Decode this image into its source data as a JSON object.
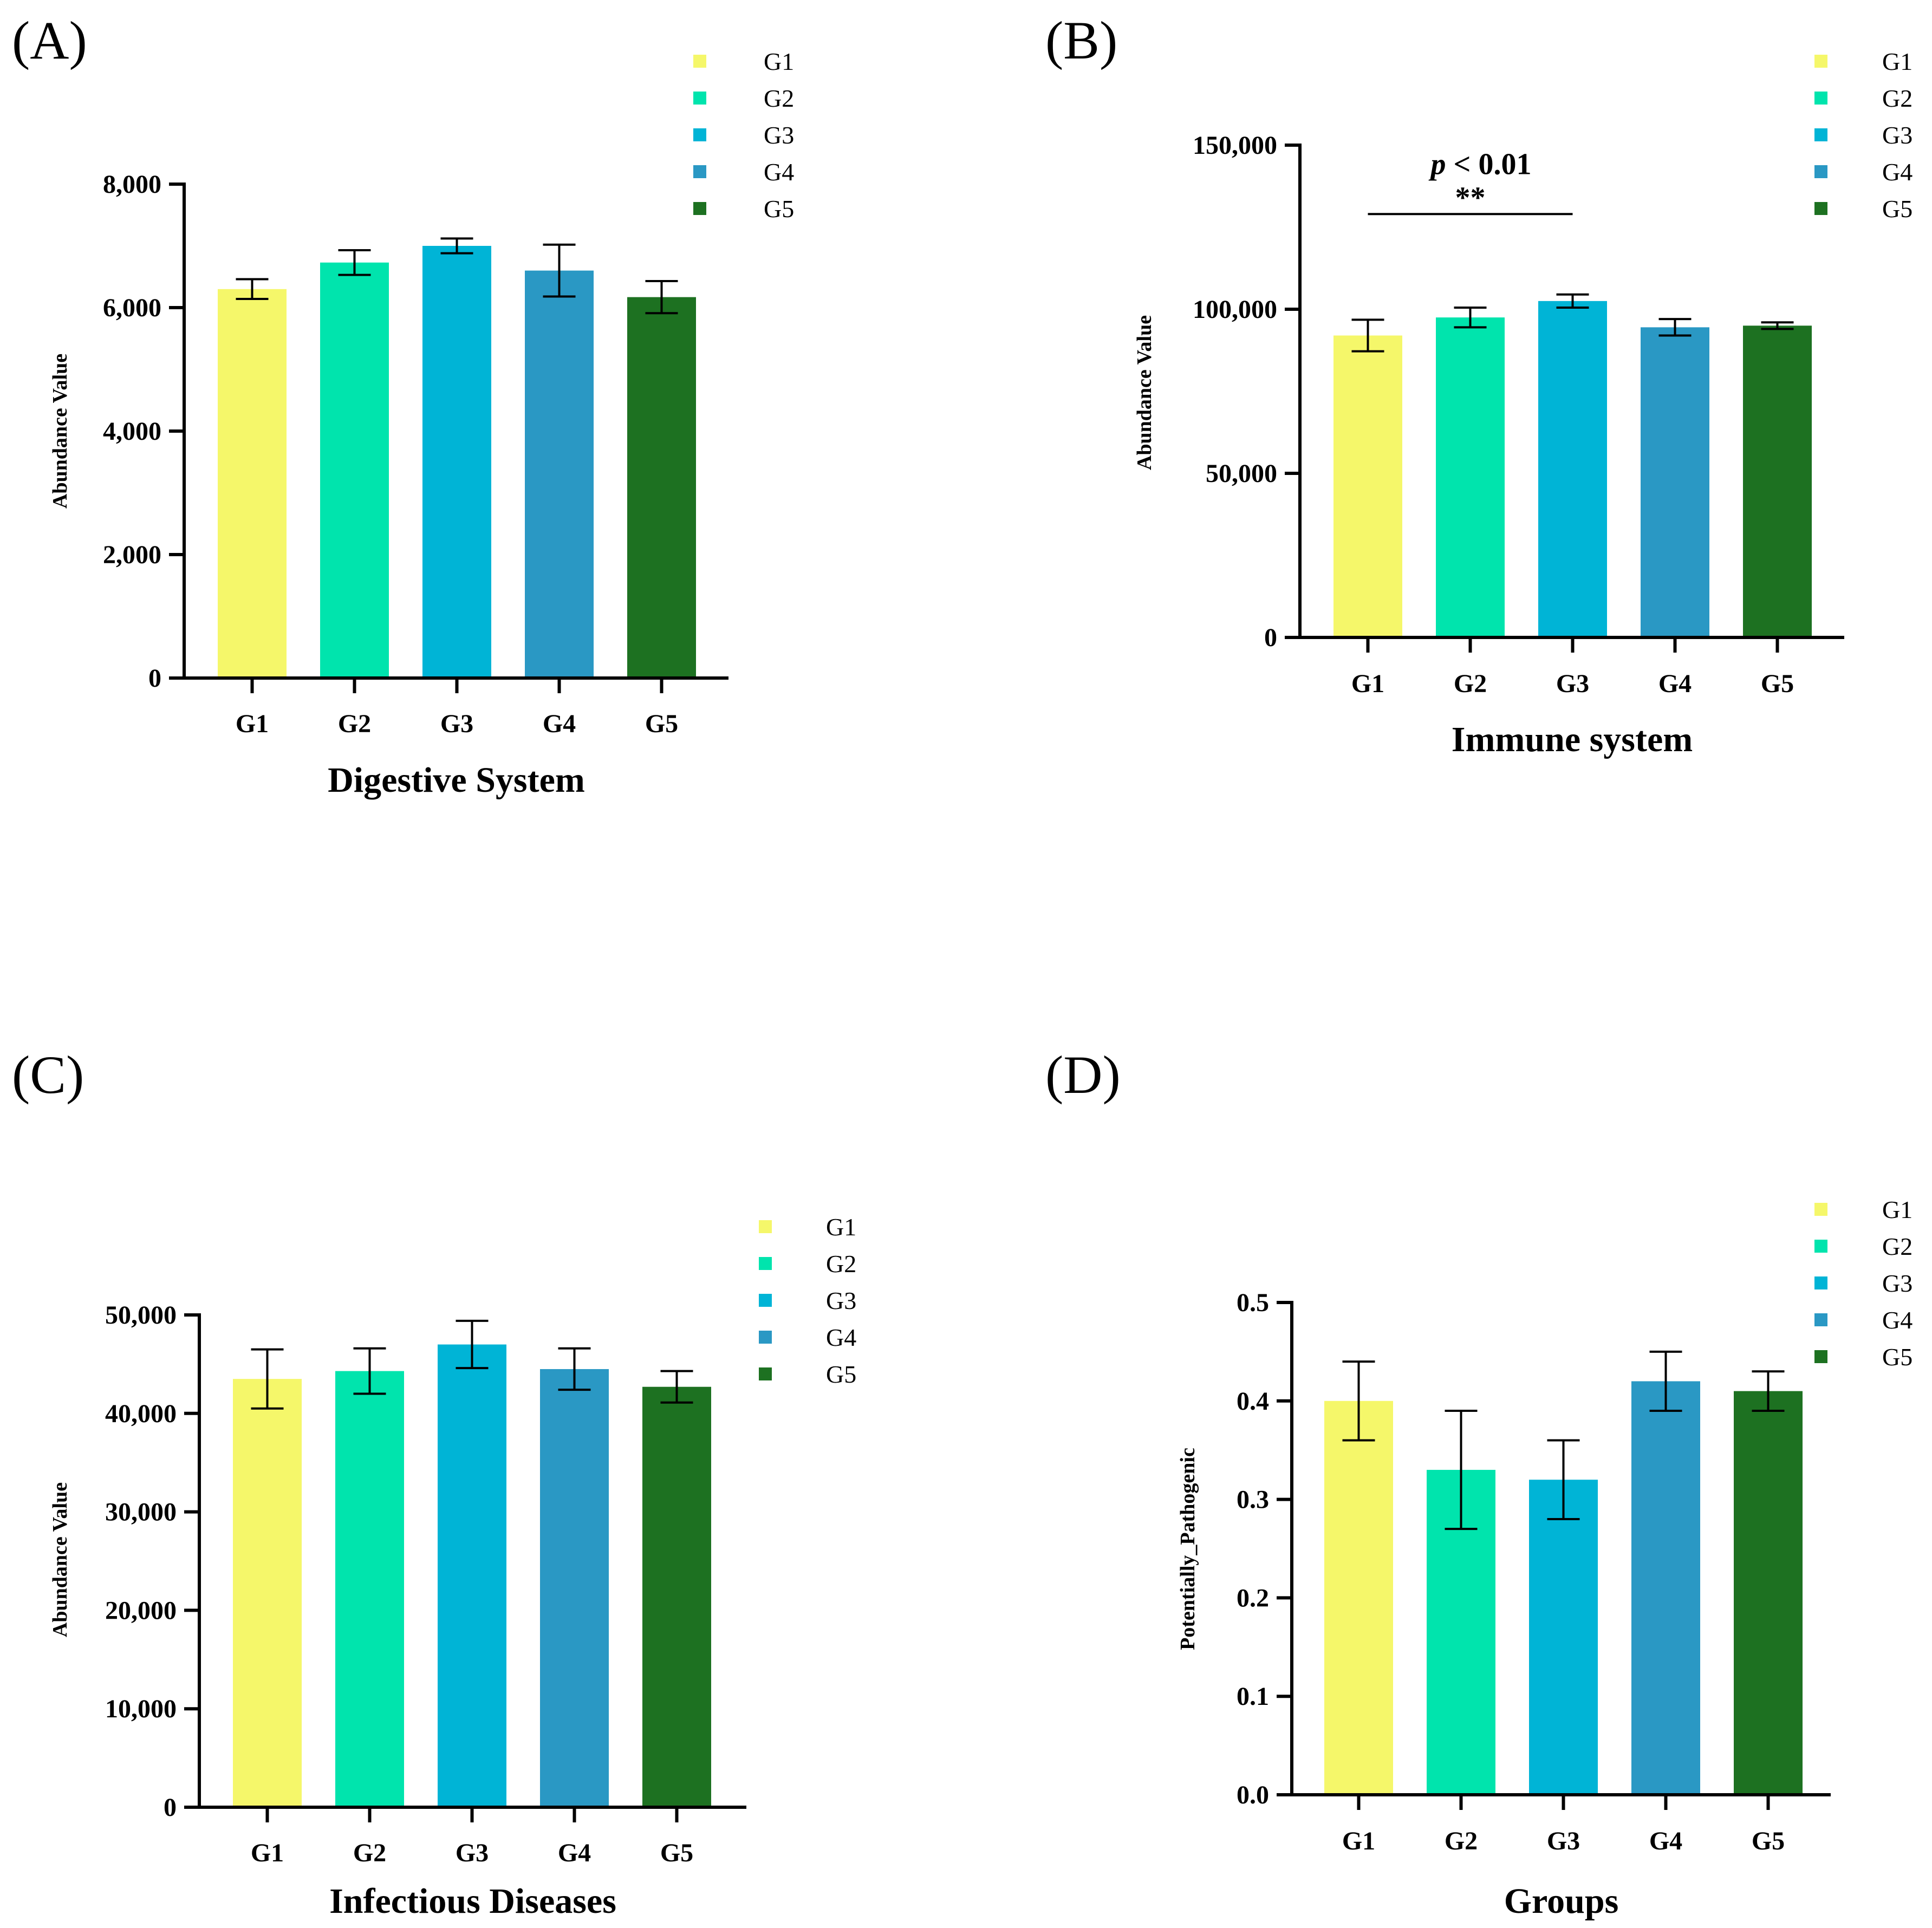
{
  "colors": {
    "G1": "#f5f76a",
    "G2": "#00e4ad",
    "G3": "#00b4d6",
    "G4": "#2a98c4",
    "G5": "#1d7121"
  },
  "chart_data": [
    {
      "panel_label": "(A)",
      "type": "bar",
      "categories": [
        "G1",
        "G2",
        "G3",
        "G4",
        "G5"
      ],
      "values": [
        6300,
        6730,
        7000,
        6600,
        6170
      ],
      "errors": [
        160,
        200,
        120,
        420,
        260
      ],
      "xlabel": "Digestive System",
      "ylabel": "Abundance Value",
      "ylim": [
        0,
        8000
      ],
      "yticks": [
        0,
        2000,
        4000,
        6000,
        8000
      ],
      "ytick_labels": [
        "0",
        "2,000",
        "4,000",
        "6,000",
        "8,000"
      ],
      "legend": [
        "G1",
        "G2",
        "G3",
        "G4",
        "G5"
      ],
      "legend_position": "top-right",
      "annotations": []
    },
    {
      "panel_label": "(B)",
      "type": "bar",
      "categories": [
        "G1",
        "G2",
        "G3",
        "G4",
        "G5"
      ],
      "values": [
        92000,
        97500,
        102500,
        94500,
        95000
      ],
      "errors": [
        4800,
        3000,
        2000,
        2500,
        1000
      ],
      "xlabel": "Immune system",
      "ylabel": "Abundance Value",
      "ylim": [
        0,
        150000
      ],
      "yticks": [
        0,
        50000,
        100000,
        150000
      ],
      "ytick_labels": [
        "0",
        "50,000",
        "100,000",
        "150,000"
      ],
      "legend": [
        "G1",
        "G2",
        "G3",
        "G4",
        "G5"
      ],
      "legend_position": "top-right",
      "annotations": [
        {
          "from": "G1",
          "to": "G3",
          "y": 129000,
          "p_italic": "p",
          "p_rest": " < 0.01",
          "stars": "**"
        }
      ]
    },
    {
      "panel_label": "(C)",
      "type": "bar",
      "categories": [
        "G1",
        "G2",
        "G3",
        "G4",
        "G5"
      ],
      "values": [
        43500,
        44300,
        47000,
        44500,
        42700
      ],
      "errors": [
        3000,
        2300,
        2400,
        2100,
        1600
      ],
      "xlabel": "Infectious Diseases",
      "ylabel": "Abundance Value",
      "ylim": [
        0,
        50000
      ],
      "yticks": [
        0,
        10000,
        20000,
        30000,
        40000,
        50000
      ],
      "ytick_labels": [
        "0",
        "10,000",
        "20,000",
        "30,000",
        "40,000",
        "50,000"
      ],
      "legend": [
        "G1",
        "G2",
        "G3",
        "G4",
        "G5"
      ],
      "legend_position": "top-right",
      "annotations": []
    },
    {
      "panel_label": "(D)",
      "type": "bar",
      "categories": [
        "G1",
        "G2",
        "G3",
        "G4",
        "G5"
      ],
      "values": [
        0.4,
        0.33,
        0.32,
        0.42,
        0.41
      ],
      "errors": [
        0.04,
        0.06,
        0.04,
        0.03,
        0.02
      ],
      "xlabel": "Groups",
      "ylabel": "Potentially_Pathogenic",
      "ylim": [
        0,
        0.5
      ],
      "yticks": [
        0,
        0.1,
        0.2,
        0.3,
        0.4,
        0.5
      ],
      "ytick_labels": [
        "0.0",
        "0.1",
        "0.2",
        "0.3",
        "0.4",
        "0.5"
      ],
      "legend": [
        "G1",
        "G2",
        "G3",
        "G4",
        "G5"
      ],
      "legend_position": "top-right",
      "annotations": []
    }
  ]
}
